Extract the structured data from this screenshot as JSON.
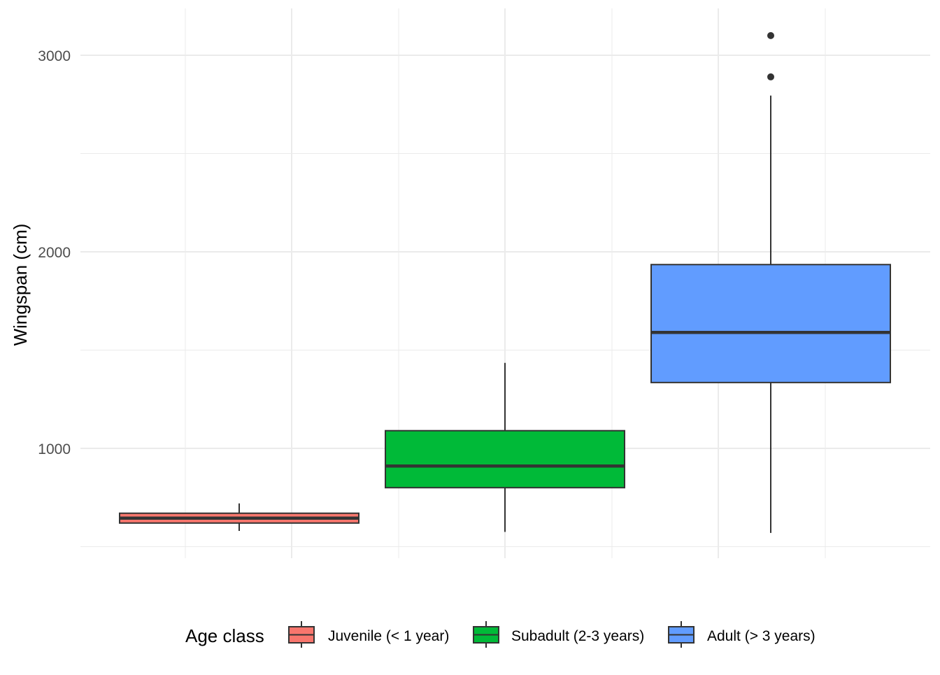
{
  "chart_data": {
    "type": "box",
    "title": "",
    "xlabel": "",
    "ylabel": "Wingspan (cm)",
    "ylim": [
      530,
      3230
    ],
    "y_major_ticks": [
      1000,
      2000,
      3000
    ],
    "y_minor_ticks": [
      500,
      1500,
      2500
    ],
    "y_tick_labels": [
      "1000",
      "2000",
      "3000"
    ],
    "grid": true,
    "legend": {
      "title": "Age class",
      "position": "bottom",
      "entries": [
        "Juvenile (< 1 year)",
        "Subadult (2-3 years)",
        "Adult (> 3 years)"
      ]
    },
    "series": [
      {
        "name": "Juvenile (< 1 year)",
        "color": "#F8766D",
        "whisker_low": 580,
        "q1": 620,
        "median": 645,
        "q3": 670,
        "whisker_high": 720,
        "outliers": []
      },
      {
        "name": "Subadult (2-3 years)",
        "color": "#00BA38",
        "whisker_low": 575,
        "q1": 800,
        "median": 910,
        "q3": 1090,
        "whisker_high": 1435,
        "outliers": []
      },
      {
        "name": "Adult (> 3 years)",
        "color": "#619CFF",
        "whisker_low": 570,
        "q1": 1335,
        "median": 1590,
        "q3": 1935,
        "whisker_high": 2795,
        "outliers": [
          2890,
          3100
        ]
      }
    ]
  }
}
